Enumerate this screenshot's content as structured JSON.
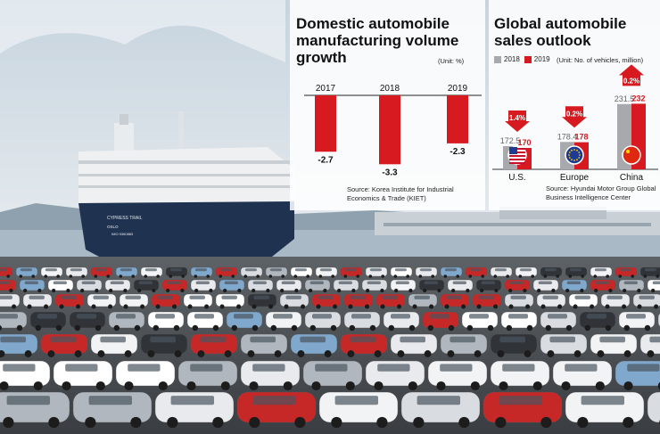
{
  "colors": {
    "red": "#d71920",
    "gray": "#a7a9ac",
    "panel_bg": "#ffffff",
    "sky": "#d9e2ea",
    "sea": "#9fb3c2",
    "ship_hull": "#1f3350",
    "asphalt": "#4b4f54"
  },
  "chart_data": [
    {
      "type": "bar",
      "title": "Domestic automobile manufacturing volume growth",
      "unit": "(Unit: %)",
      "categories": [
        "2017",
        "2018",
        "2019"
      ],
      "values": [
        -2.7,
        -3.3,
        -2.3
      ],
      "value_labels": [
        "-2.7",
        "-3.3",
        "-2.3"
      ],
      "source": "Source: Korea Institute for Industrial Economics & Trade (KIET)",
      "ylim": [
        -3.5,
        0
      ],
      "grid": false,
      "bar_color": "#d71920"
    },
    {
      "type": "bar",
      "title": "Global automobile sales outlook",
      "unit": "(Unit: No. of vehicles, million)",
      "legend": "top-left",
      "categories": [
        "U.S.",
        "Europe",
        "China"
      ],
      "series": [
        {
          "name": "2018",
          "values": [
            172.5,
            178.4,
            231.5
          ],
          "labels": [
            "172.5",
            "178.4",
            "231.5"
          ],
          "color": "#a7a9ac"
        },
        {
          "name": "2019",
          "values": [
            170,
            178,
            232
          ],
          "labels": [
            "170",
            "178",
            "232"
          ],
          "color": "#d71920"
        }
      ],
      "change_labels": [
        "1.4%",
        "0.2%",
        "0.2%"
      ],
      "change_directions": [
        "down",
        "down",
        "up"
      ],
      "flag_icons": [
        "us-flag-icon",
        "eu-flag-icon",
        "china-flag-icon"
      ],
      "ylim": [
        140,
        240
      ],
      "grid": false,
      "source": "Source: Hyundai Motor Group Global Business Intelligence Center"
    }
  ]
}
